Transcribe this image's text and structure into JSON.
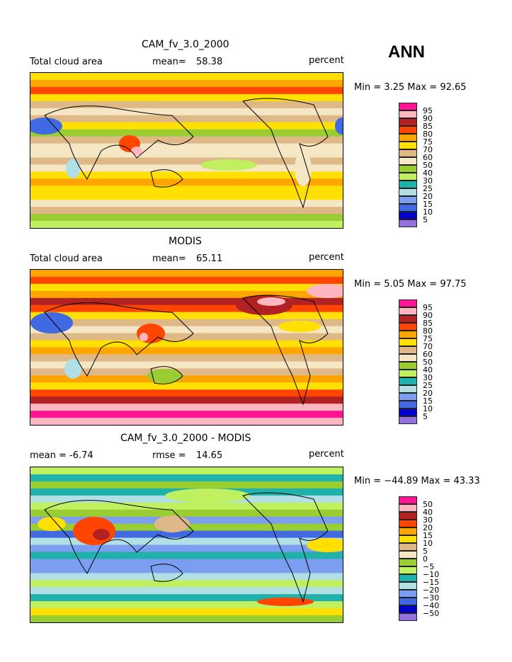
{
  "season": "ANN",
  "palette": [
    "#ff1493",
    "#ffb6c1",
    "#b22222",
    "#ff4500",
    "#ffa500",
    "#ffe000",
    "#deb887",
    "#f5e6c4",
    "#9acd32",
    "#c0f060",
    "#20b2aa",
    "#b0e0e6",
    "#7b9ef0",
    "#4169e1",
    "#0000cd",
    "#9370db"
  ],
  "panels": [
    {
      "title": "CAM_fv_3.0_2000",
      "left_label": "Total cloud area",
      "stat_label": "mean=",
      "stat_value": "58.38",
      "units": "percent",
      "min_max": "Min =    3.25 Max =   92.65",
      "levels": [
        "95",
        "90",
        "85",
        "80",
        "75",
        "70",
        "60",
        "50",
        "40",
        "30",
        "25",
        "20",
        "15",
        "10",
        "5"
      ]
    },
    {
      "title": "MODIS",
      "left_label": "Total cloud area",
      "stat_label": "mean=",
      "stat_value": "65.11",
      "units": "percent",
      "min_max": "Min =    5.05 Max =   97.75",
      "levels": [
        "95",
        "90",
        "85",
        "80",
        "75",
        "70",
        "60",
        "50",
        "40",
        "30",
        "25",
        "20",
        "15",
        "10",
        "5"
      ]
    },
    {
      "title": "CAM_fv_3.0_2000 - MODIS",
      "left_label": "mean =   -6.74",
      "stat_label": "rmse =",
      "stat_value": "14.65",
      "units": "percent",
      "min_max": "Min = −44.89 Max =   43.33",
      "levels": [
        "50",
        "40",
        "30",
        "20",
        "15",
        "10",
        "5",
        "0",
        "−5",
        "−10",
        "−15",
        "−20",
        "−30",
        "−40",
        "−50"
      ]
    }
  ]
}
